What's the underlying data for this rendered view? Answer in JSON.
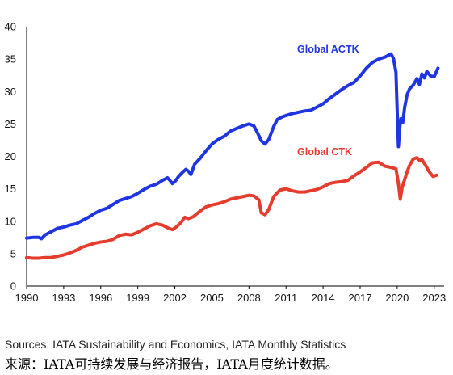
{
  "chart_data": {
    "type": "line",
    "title": "",
    "xlabel": "",
    "ylabel": "",
    "xlim": [
      1990,
      2023.8
    ],
    "ylim": [
      0,
      40
    ],
    "x_ticks": [
      "1990",
      "1993",
      "1996",
      "1999",
      "2002",
      "2005",
      "2008",
      "2011",
      "2014",
      "2017",
      "2020",
      "2023"
    ],
    "y_ticks": [
      "0",
      "5",
      "10",
      "15",
      "20",
      "25",
      "30",
      "35",
      "40"
    ],
    "grid": false,
    "legend": "inline labels",
    "colors": {
      "actk": "#1f35e0",
      "ctk": "#e63c2e"
    },
    "series": [
      {
        "name": "Global ACTK",
        "x": [
          1990.0,
          1990.5,
          1991.0,
          1991.2,
          1991.5,
          1992.0,
          1992.5,
          1993.0,
          1993.5,
          1994.0,
          1994.5,
          1995.0,
          1995.5,
          1996.0,
          1996.5,
          1997.0,
          1997.5,
          1998.0,
          1998.5,
          1999.0,
          1999.5,
          2000.0,
          2000.5,
          2001.0,
          2001.4,
          2001.6,
          2001.8,
          2002.0,
          2002.3,
          2002.6,
          2002.9,
          2003.1,
          2003.3,
          2003.6,
          2004.0,
          2004.5,
          2005.0,
          2005.5,
          2006.0,
          2006.5,
          2007.0,
          2007.5,
          2008.0,
          2008.4,
          2008.7,
          2009.0,
          2009.3,
          2009.6,
          2010.0,
          2010.3,
          2010.7,
          2011.0,
          2011.5,
          2012.0,
          2012.5,
          2013.0,
          2013.5,
          2014.0,
          2014.5,
          2015.0,
          2015.5,
          2016.0,
          2016.5,
          2017.0,
          2017.5,
          2018.0,
          2018.5,
          2019.0,
          2019.3,
          2019.5,
          2019.7,
          2019.9,
          2020.0,
          2020.1,
          2020.2,
          2020.3,
          2020.45,
          2020.6,
          2020.8,
          2021.0,
          2021.3,
          2021.6,
          2021.8,
          2022.0,
          2022.2,
          2022.4,
          2022.7,
          2023.0,
          2023.3
        ],
        "y": [
          7.4,
          7.5,
          7.5,
          7.3,
          7.9,
          8.4,
          8.9,
          9.1,
          9.4,
          9.6,
          10.1,
          10.6,
          11.2,
          11.7,
          12.0,
          12.6,
          13.2,
          13.5,
          13.8,
          14.3,
          14.9,
          15.4,
          15.7,
          16.3,
          16.7,
          16.3,
          15.8,
          16.1,
          16.9,
          17.5,
          18.0,
          17.7,
          17.2,
          18.8,
          19.6,
          20.8,
          21.9,
          22.6,
          23.1,
          23.9,
          24.3,
          24.7,
          25.0,
          24.7,
          23.6,
          22.4,
          21.9,
          22.6,
          24.6,
          25.7,
          26.1,
          26.3,
          26.6,
          26.8,
          27.0,
          27.1,
          27.6,
          28.1,
          28.9,
          29.6,
          30.3,
          30.9,
          31.4,
          32.4,
          33.6,
          34.5,
          35.0,
          35.3,
          35.6,
          35.8,
          35.1,
          33.0,
          27.0,
          21.5,
          24.3,
          25.8,
          25.2,
          27.5,
          29.5,
          30.4,
          31.0,
          32.0,
          31.1,
          32.7,
          32.1,
          33.1,
          32.4,
          32.3,
          33.6
        ]
      },
      {
        "name": "Global CTK",
        "x": [
          1990.0,
          1990.5,
          1991.0,
          1991.5,
          1992.0,
          1992.5,
          1993.0,
          1993.5,
          1994.0,
          1994.5,
          1995.0,
          1995.5,
          1996.0,
          1996.5,
          1997.0,
          1997.5,
          1998.0,
          1998.5,
          1999.0,
          1999.5,
          2000.0,
          2000.5,
          2001.0,
          2001.4,
          2001.8,
          2002.1,
          2002.5,
          2002.8,
          2003.1,
          2003.5,
          2004.0,
          2004.5,
          2005.0,
          2005.5,
          2006.0,
          2006.5,
          2007.0,
          2007.5,
          2008.0,
          2008.4,
          2008.8,
          2009.0,
          2009.3,
          2009.6,
          2010.0,
          2010.5,
          2011.0,
          2011.5,
          2012.0,
          2012.5,
          2013.0,
          2013.5,
          2014.0,
          2014.5,
          2015.0,
          2015.5,
          2016.0,
          2016.5,
          2017.0,
          2017.5,
          2018.0,
          2018.5,
          2019.0,
          2019.5,
          2019.9,
          2020.1,
          2020.25,
          2020.4,
          2020.6,
          2020.8,
          2021.0,
          2021.3,
          2021.6,
          2021.8,
          2022.0,
          2022.3,
          2022.6,
          2022.9,
          2023.2
        ],
        "y": [
          4.4,
          4.3,
          4.3,
          4.4,
          4.4,
          4.6,
          4.8,
          5.1,
          5.5,
          6.0,
          6.3,
          6.6,
          6.8,
          6.9,
          7.2,
          7.8,
          8.0,
          7.9,
          8.3,
          8.8,
          9.3,
          9.6,
          9.4,
          9.0,
          8.7,
          9.1,
          9.8,
          10.6,
          10.4,
          10.7,
          11.5,
          12.2,
          12.5,
          12.7,
          13.0,
          13.4,
          13.6,
          13.8,
          14.0,
          13.9,
          13.3,
          11.3,
          11.0,
          11.8,
          13.8,
          14.8,
          15.0,
          14.7,
          14.5,
          14.5,
          14.7,
          14.9,
          15.3,
          15.8,
          16.0,
          16.1,
          16.3,
          17.0,
          17.6,
          18.3,
          19.0,
          19.1,
          18.5,
          18.3,
          18.1,
          15.8,
          13.4,
          15.2,
          16.4,
          17.6,
          18.6,
          19.6,
          19.8,
          19.4,
          19.5,
          18.6,
          17.6,
          16.9,
          17.1
        ]
      }
    ]
  },
  "footer": {
    "source_en": "Sources: IATA Sustainability and Economics, IATA Monthly Statistics",
    "source_zh": "来源：IATA可持续发展与经济报告，IATA月度统计数据。"
  }
}
